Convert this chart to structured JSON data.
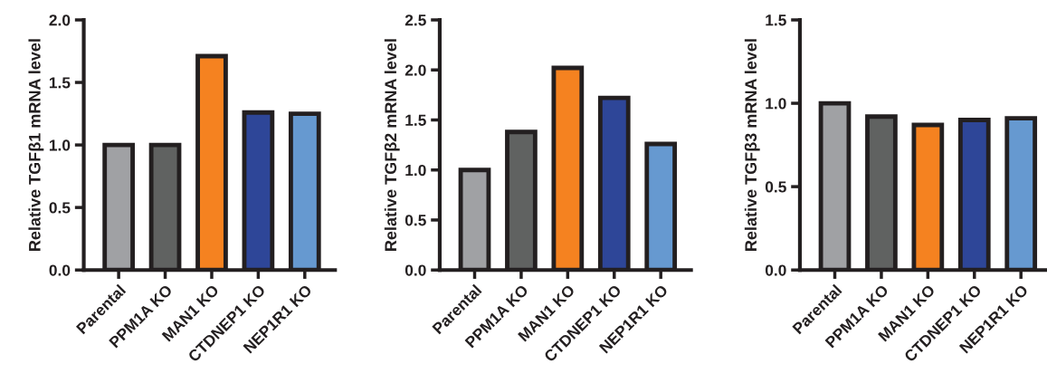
{
  "chart_data": [
    {
      "type": "bar",
      "ylabel": "Relative TGFβ1 mRNA level",
      "categories": [
        "Parental",
        "PPM1A KO",
        "MAN1 KO",
        "CTDNEP1 KO",
        "NEP1R1 KO"
      ],
      "values": [
        1.0,
        1.0,
        1.71,
        1.26,
        1.25
      ],
      "colors": [
        "#a0a1a4",
        "#606261",
        "#f58220",
        "#2e4698",
        "#6699d0"
      ],
      "ylim": [
        0,
        2.0
      ],
      "yticks": [
        {
          "value": 0,
          "label": "0.0"
        },
        {
          "value": 0.5,
          "label": "0.5"
        },
        {
          "value": 1.0,
          "label": "1.0"
        },
        {
          "value": 1.5,
          "label": "1.5"
        },
        {
          "value": 2.0,
          "label": "2.0"
        }
      ],
      "grid": false
    },
    {
      "type": "bar",
      "ylabel": "Relative TGFβ2 mRNA level",
      "categories": [
        "Parental",
        "PPM1A KO",
        "MAN1 KO",
        "CTDNEP1 KO",
        "NEP1R1 KO"
      ],
      "values": [
        1.0,
        1.38,
        2.02,
        1.72,
        1.26
      ],
      "colors": [
        "#a0a1a4",
        "#606261",
        "#f58220",
        "#2e4698",
        "#6699d0"
      ],
      "ylim": [
        0,
        2.5
      ],
      "yticks": [
        {
          "value": 0,
          "label": "0.0"
        },
        {
          "value": 0.5,
          "label": "0.5"
        },
        {
          "value": 1.0,
          "label": "1.0"
        },
        {
          "value": 1.5,
          "label": "1.5"
        },
        {
          "value": 2.0,
          "label": "2.0"
        },
        {
          "value": 2.5,
          "label": "2.5"
        }
      ],
      "grid": false
    },
    {
      "type": "bar",
      "ylabel": "Relative TGFβ3 mRNA level",
      "categories": [
        "Parental",
        "PPM1A KO",
        "MAN1 KO",
        "CTDNEP1 KO",
        "NEP1R1 KO"
      ],
      "values": [
        1.0,
        0.92,
        0.87,
        0.9,
        0.91
      ],
      "colors": [
        "#a0a1a4",
        "#606261",
        "#f58220",
        "#2e4698",
        "#6699d0"
      ],
      "ylim": [
        0,
        1.5
      ],
      "yticks": [
        {
          "value": 0,
          "label": "0.0"
        },
        {
          "value": 0.5,
          "label": "0.5"
        },
        {
          "value": 1.0,
          "label": "1.0"
        },
        {
          "value": 1.5,
          "label": "1.5"
        }
      ],
      "grid": false
    }
  ]
}
